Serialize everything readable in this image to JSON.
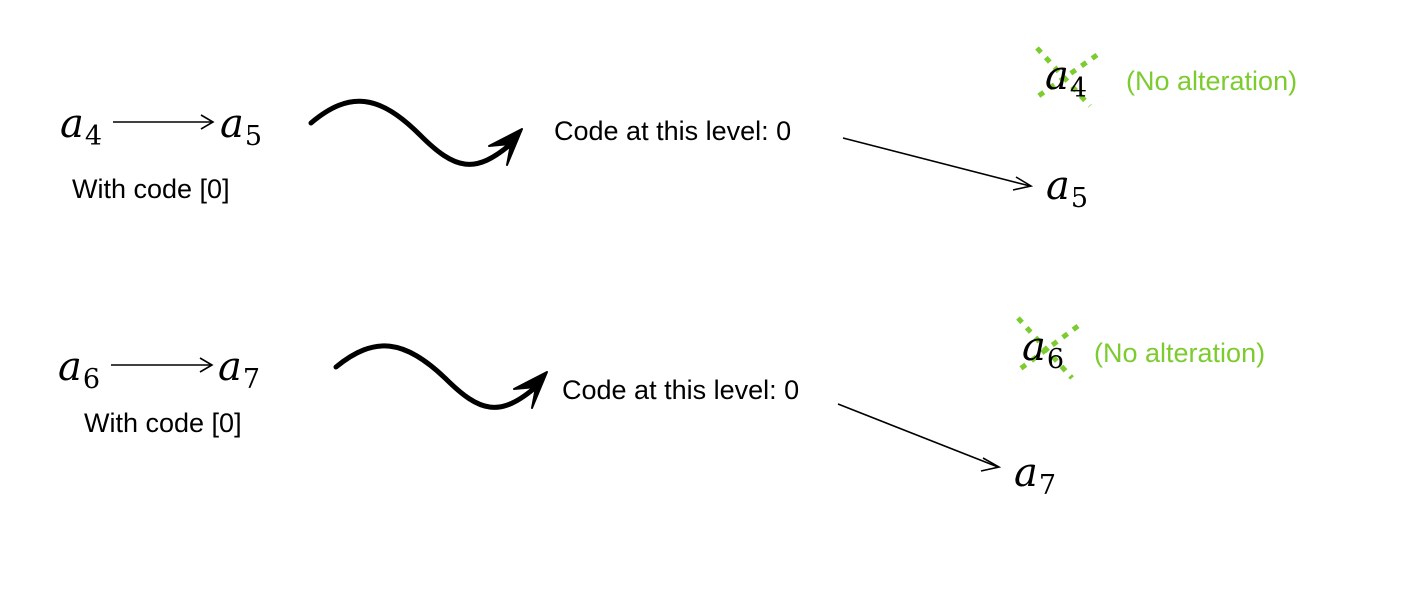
{
  "colors": {
    "ink": "#000000",
    "accent": "#7ccc2f"
  },
  "rows": [
    {
      "source": {
        "base": "a",
        "sub": "4"
      },
      "target": {
        "base": "a",
        "sub": "5"
      },
      "code_label": "With code [0]",
      "level_label": "Code at this level: 0",
      "crossed": {
        "base": "a",
        "sub": "4"
      },
      "crossed_note": "(No alteration)",
      "kept": {
        "base": "a",
        "sub": "5"
      }
    },
    {
      "source": {
        "base": "a",
        "sub": "6"
      },
      "target": {
        "base": "a",
        "sub": "7"
      },
      "code_label": "With code [0]",
      "level_label": "Code at this level: 0",
      "crossed": {
        "base": "a",
        "sub": "6"
      },
      "crossed_note": "(No alteration)",
      "kept": {
        "base": "a",
        "sub": "7"
      }
    }
  ]
}
